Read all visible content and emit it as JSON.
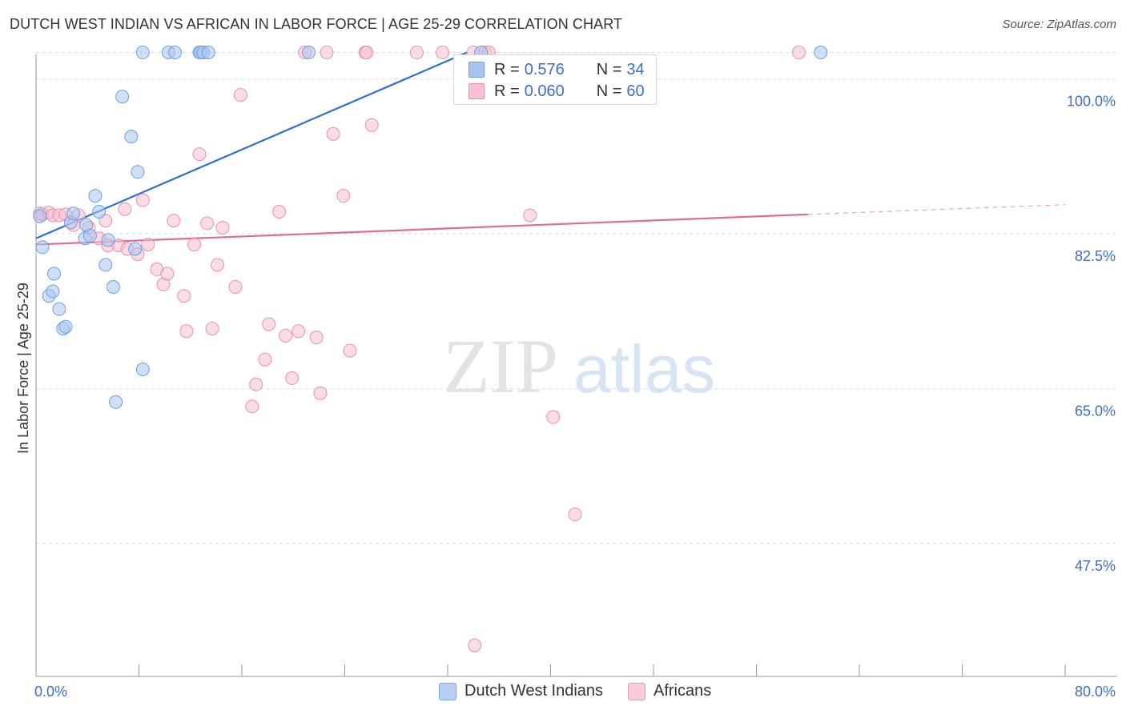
{
  "header": {
    "title": "DUTCH WEST INDIAN VS AFRICAN IN LABOR FORCE | AGE 25-29 CORRELATION CHART",
    "source": "Source: ZipAtlas.com"
  },
  "watermark": {
    "zip": "ZIP",
    "atlas": "atlas"
  },
  "colors": {
    "blue_fill": "#a8c4ee",
    "blue_stroke": "#6f9ee0",
    "blue_line": "#2f6fcf",
    "pink_fill": "#f6bfd2",
    "pink_stroke": "#e890b0",
    "pink_line": "#e06a98",
    "tick_text": "#3d6fc7",
    "grid": "#d9d9d9"
  },
  "legend_box": {
    "rows": [
      {
        "r_label": "R =",
        "r_value": "0.576",
        "n_label": "N =",
        "n_value": "34"
      },
      {
        "r_label": "R =",
        "r_value": "0.060",
        "n_label": "N =",
        "n_value": "60"
      }
    ]
  },
  "chart_data": {
    "type": "scatter",
    "title": "DUTCH WEST INDIAN VS AFRICAN IN LABOR FORCE | AGE 25-29 CORRELATION CHART",
    "xlabel": "",
    "ylabel": "In Labor Force | Age 25-29",
    "xlim": [
      0,
      80
    ],
    "ylim": [
      32.5,
      103.5
    ],
    "x_tick_labels": [
      "0.0%",
      "80.0%"
    ],
    "y_ticks": [
      47.5,
      65.0,
      82.5,
      100.0
    ],
    "y_tick_labels": [
      "47.5%",
      "65.0%",
      "82.5%",
      "100.0%"
    ],
    "grid": true,
    "legend_position": "bottom",
    "series": [
      {
        "name": "Dutch West Indians",
        "R": 0.576,
        "N": 34,
        "trend": {
          "x0": 0.0,
          "y0": 82.0,
          "x1": 33.5,
          "y1": 103.0,
          "dashed_to": null
        },
        "points": [
          [
            0.3,
            84.5
          ],
          [
            0.5,
            81.0
          ],
          [
            1.0,
            75.5
          ],
          [
            1.3,
            76.0
          ],
          [
            1.4,
            78.0
          ],
          [
            1.8,
            74.0
          ],
          [
            2.1,
            71.8
          ],
          [
            2.3,
            72.0
          ],
          [
            2.7,
            83.8
          ],
          [
            2.9,
            84.8
          ],
          [
            3.8,
            82.0
          ],
          [
            3.9,
            83.5
          ],
          [
            4.2,
            82.3
          ],
          [
            4.6,
            86.8
          ],
          [
            4.9,
            85.0
          ],
          [
            5.4,
            79.0
          ],
          [
            5.6,
            81.8
          ],
          [
            6.0,
            76.5
          ],
          [
            6.2,
            63.5
          ],
          [
            6.7,
            98.0
          ],
          [
            7.4,
            93.5
          ],
          [
            7.7,
            80.8
          ],
          [
            7.9,
            89.5
          ],
          [
            8.3,
            67.2
          ],
          [
            8.3,
            103.0
          ],
          [
            10.3,
            103.0
          ],
          [
            10.8,
            103.0
          ],
          [
            12.7,
            103.0
          ],
          [
            12.8,
            103.0
          ],
          [
            13.0,
            103.0
          ],
          [
            13.4,
            103.0
          ],
          [
            21.2,
            103.0
          ],
          [
            34.6,
            103.0
          ],
          [
            61.0,
            103.0
          ]
        ]
      },
      {
        "name": "Africans",
        "R": 0.06,
        "N": 60,
        "trend": {
          "x0": 0.0,
          "y0": 81.3,
          "x1": 60.0,
          "y1": 84.7,
          "dashed_to": {
            "x": 80.0,
            "y": 85.8
          }
        },
        "points": [
          [
            0.3,
            84.8
          ],
          [
            0.5,
            84.7
          ],
          [
            1.0,
            84.9
          ],
          [
            1.3,
            84.6
          ],
          [
            1.8,
            84.6
          ],
          [
            2.3,
            84.7
          ],
          [
            2.9,
            83.5
          ],
          [
            3.3,
            84.6
          ],
          [
            4.1,
            83.2
          ],
          [
            4.9,
            82.0
          ],
          [
            5.4,
            84.0
          ],
          [
            5.6,
            81.2
          ],
          [
            6.4,
            81.2
          ],
          [
            6.9,
            85.3
          ],
          [
            7.1,
            80.8
          ],
          [
            7.9,
            80.2
          ],
          [
            8.3,
            86.3
          ],
          [
            8.7,
            81.3
          ],
          [
            9.4,
            78.5
          ],
          [
            9.9,
            76.8
          ],
          [
            10.2,
            78.0
          ],
          [
            10.7,
            84.0
          ],
          [
            11.5,
            75.5
          ],
          [
            11.7,
            71.5
          ],
          [
            12.3,
            81.3
          ],
          [
            12.7,
            91.5
          ],
          [
            13.3,
            83.7
          ],
          [
            13.7,
            71.8
          ],
          [
            14.1,
            79.0
          ],
          [
            14.5,
            83.2
          ],
          [
            15.5,
            76.5
          ],
          [
            15.9,
            98.2
          ],
          [
            16.8,
            63.0
          ],
          [
            17.1,
            65.5
          ],
          [
            17.8,
            68.3
          ],
          [
            18.1,
            72.3
          ],
          [
            18.9,
            85.0
          ],
          [
            19.4,
            71.0
          ],
          [
            19.9,
            66.2
          ],
          [
            20.4,
            71.5
          ],
          [
            20.9,
            103.0
          ],
          [
            21.8,
            70.8
          ],
          [
            22.1,
            64.5
          ],
          [
            22.6,
            103.0
          ],
          [
            23.1,
            93.8
          ],
          [
            23.9,
            86.8
          ],
          [
            24.4,
            69.3
          ],
          [
            25.6,
            103.0
          ],
          [
            25.7,
            103.0
          ],
          [
            26.1,
            94.8
          ],
          [
            29.6,
            103.0
          ],
          [
            31.6,
            103.0
          ],
          [
            34.0,
            103.0
          ],
          [
            34.9,
            103.0
          ],
          [
            35.2,
            103.0
          ],
          [
            34.1,
            36.0
          ],
          [
            38.4,
            84.6
          ],
          [
            40.2,
            61.8
          ],
          [
            41.9,
            50.8
          ],
          [
            59.3,
            103.0
          ]
        ]
      }
    ]
  },
  "bottom_legend": {
    "items": [
      "Dutch West Indians",
      "Africans"
    ]
  }
}
